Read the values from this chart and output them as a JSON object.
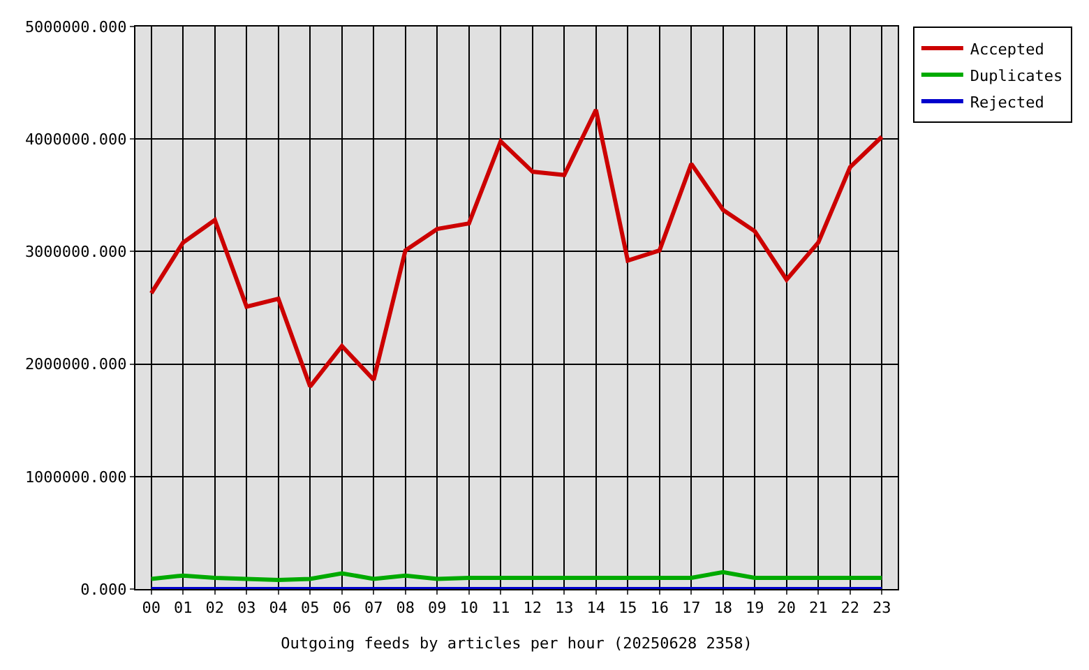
{
  "chart_data": {
    "type": "line",
    "xlabel": "Outgoing feeds by articles per hour (20250628 2358)",
    "categories": [
      "00",
      "01",
      "02",
      "03",
      "04",
      "05",
      "06",
      "07",
      "08",
      "09",
      "10",
      "11",
      "12",
      "13",
      "14",
      "15",
      "16",
      "17",
      "18",
      "19",
      "20",
      "21",
      "22",
      "23"
    ],
    "series": [
      {
        "name": "Accepted",
        "color": "#cc0000",
        "values": [
          2630000,
          3080000,
          3280000,
          2510000,
          2580000,
          1800000,
          2160000,
          1860000,
          3010000,
          3200000,
          3250000,
          3980000,
          3710000,
          3680000,
          4260000,
          2920000,
          3010000,
          3780000,
          3370000,
          3180000,
          2750000,
          3080000,
          3750000,
          4020000
        ]
      },
      {
        "name": "Duplicates",
        "color": "#00aa00",
        "values": [
          90000,
          120000,
          100000,
          90000,
          80000,
          90000,
          140000,
          90000,
          120000,
          90000,
          100000,
          100000,
          100000,
          100000,
          100000,
          100000,
          100000,
          100000,
          150000,
          100000,
          100000,
          100000,
          100000,
          100000
        ]
      },
      {
        "name": "Rejected",
        "color": "#0000cc",
        "values": [
          0,
          0,
          0,
          0,
          0,
          0,
          0,
          0,
          0,
          0,
          0,
          0,
          0,
          0,
          0,
          0,
          0,
          0,
          0,
          0,
          0,
          0,
          0,
          0
        ]
      }
    ],
    "ylim": [
      0,
      5000000
    ],
    "yticks": [
      {
        "value": 0,
        "label": "0.000"
      },
      {
        "value": 1000000,
        "label": "1000000.000"
      },
      {
        "value": 2000000,
        "label": "2000000.000"
      },
      {
        "value": 3000000,
        "label": "3000000.000"
      },
      {
        "value": 4000000,
        "label": "4000000.000"
      },
      {
        "value": 5000000,
        "label": "5000000.000"
      }
    ],
    "grid": true,
    "legend": "top right",
    "marker": "none",
    "line_style": "solid"
  }
}
